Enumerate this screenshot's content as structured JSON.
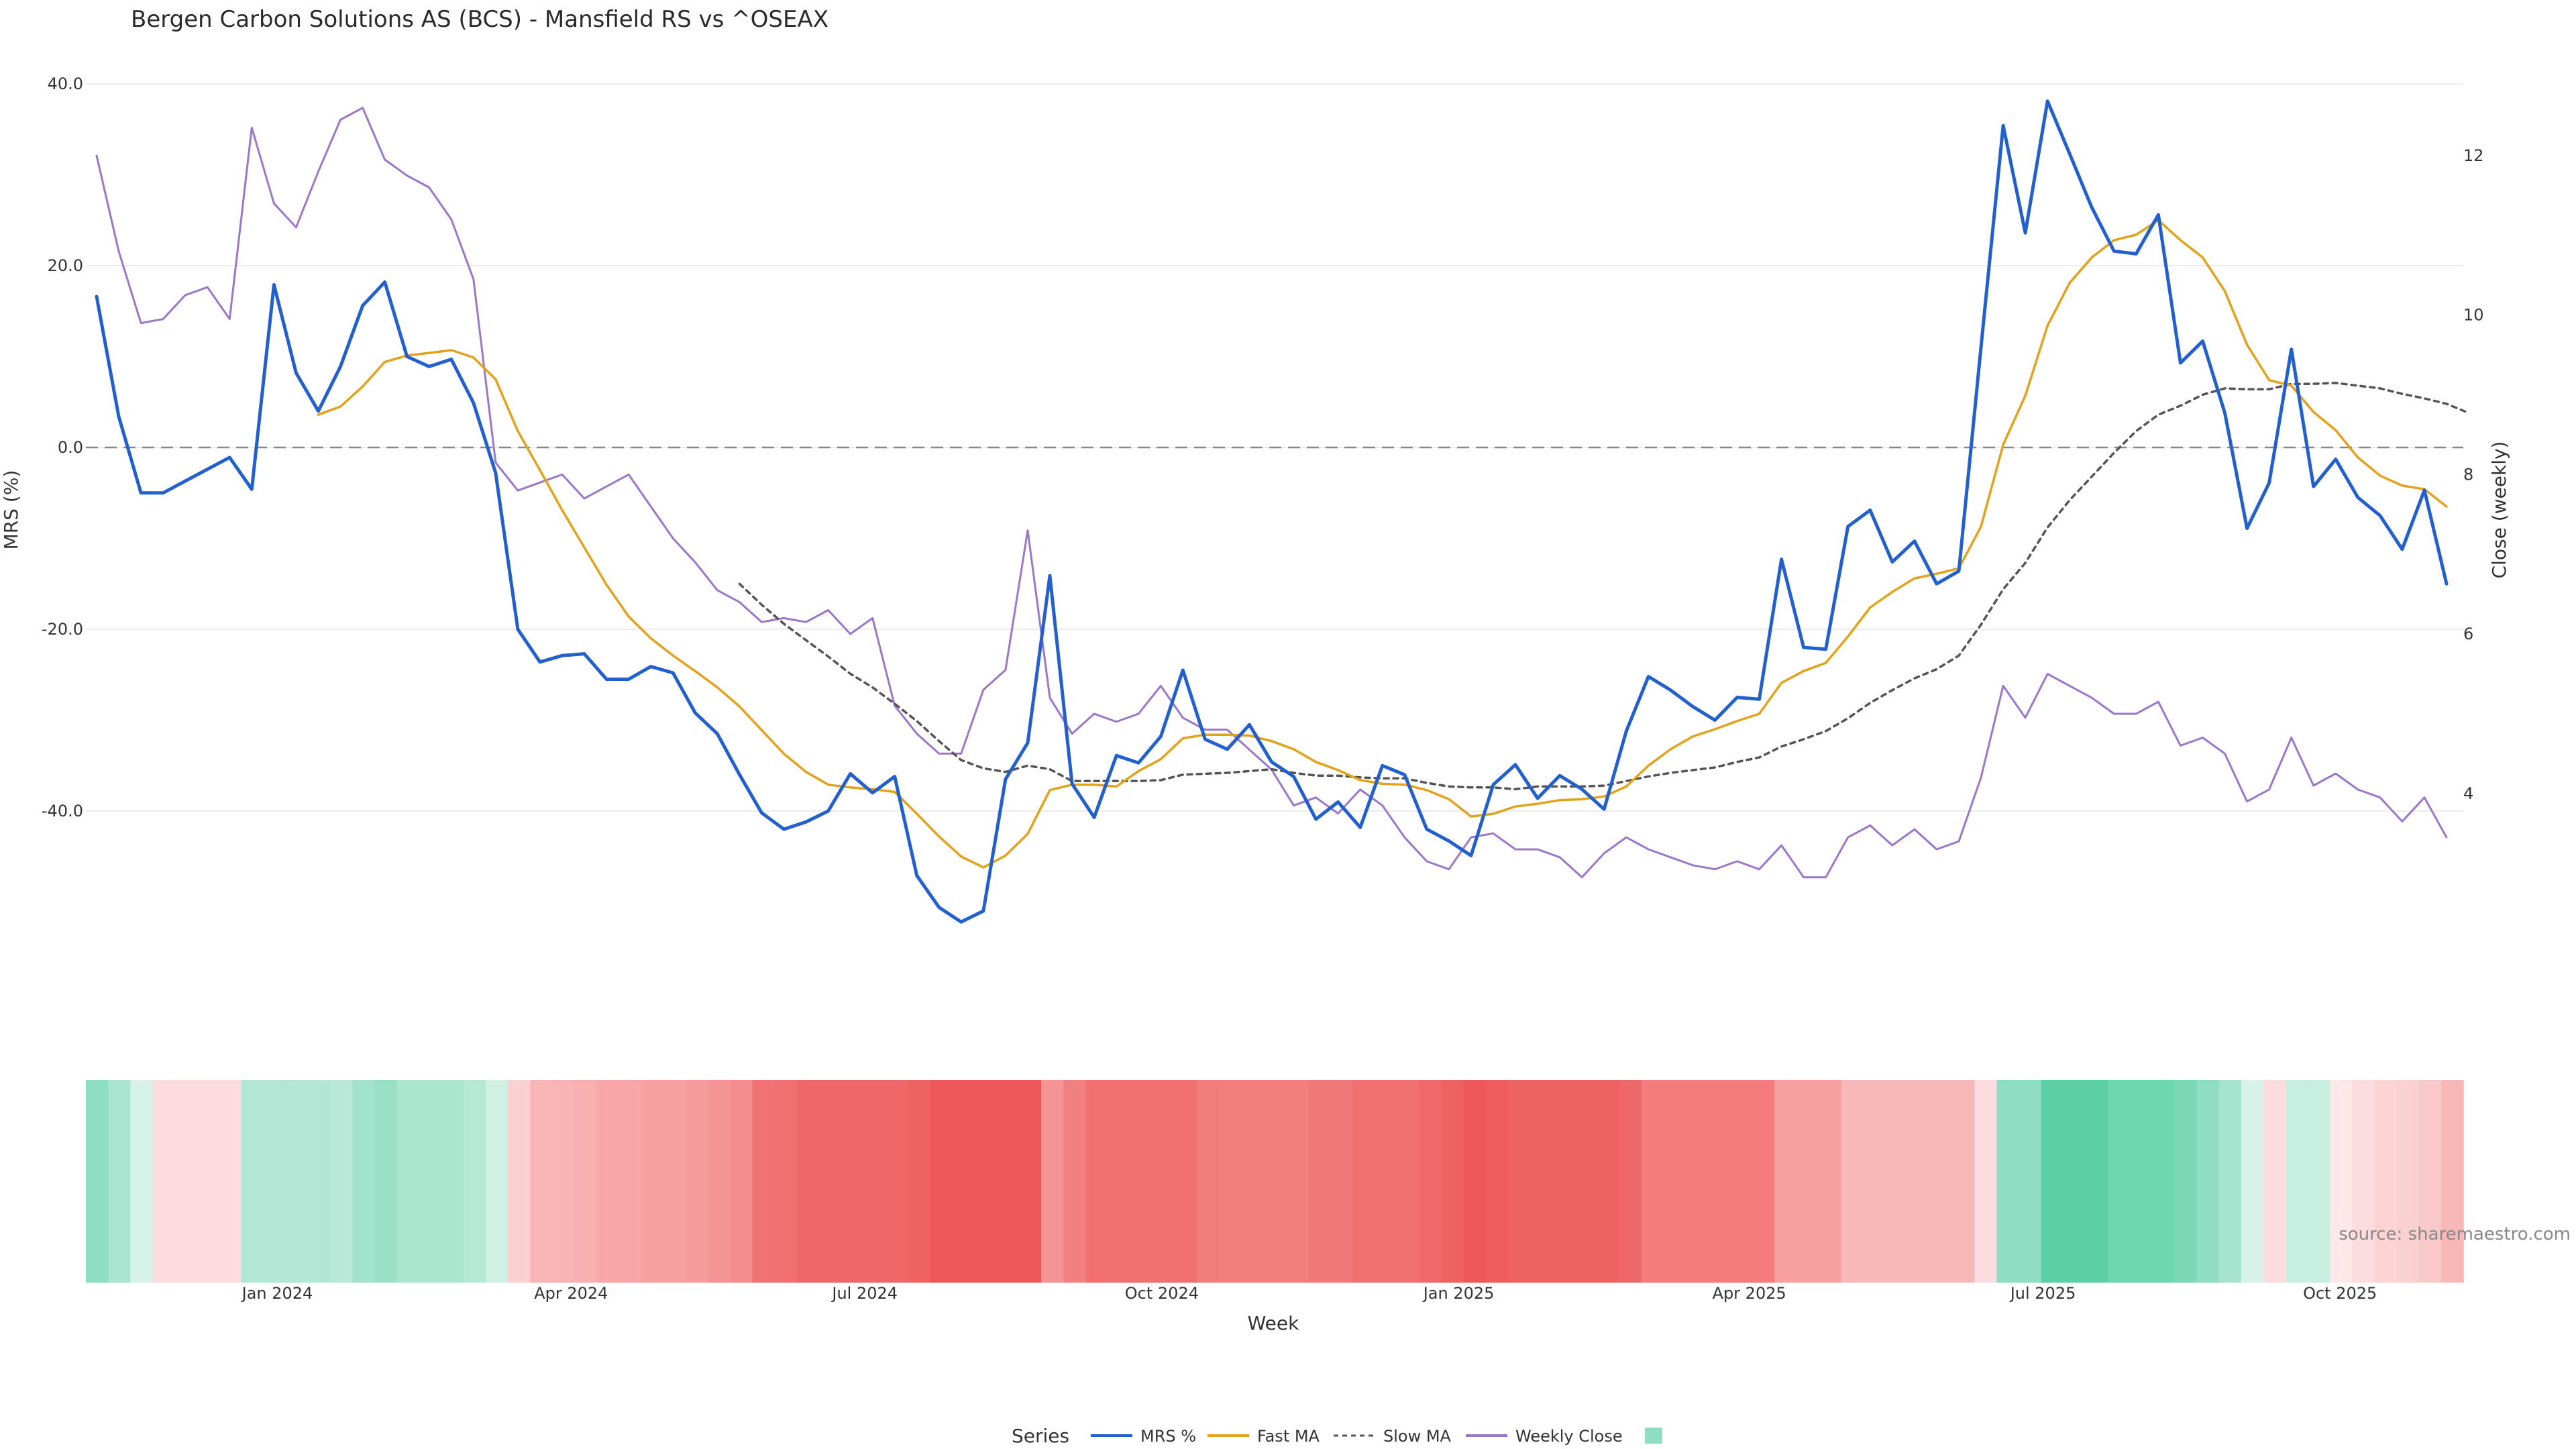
{
  "chart_data": {
    "type": "line",
    "title": "Bergen Carbon Solutions AS (BCS) - Mansfield RS vs ^OSEAX",
    "xlabel": "Week",
    "ylabel_left": "MRS (%)",
    "ylabel_right": "Close (weekly)",
    "x_start": "2023-11-06",
    "x_end": "2025-11-03",
    "y_left_range": [
      -60,
      40
    ],
    "y_left_ticks": [
      "40.0",
      "20.0",
      "0.0",
      "-20.0",
      "-40.0"
    ],
    "y_right_range": [
      1.5,
      12.9
    ],
    "y_right_ticks": [
      "12",
      "10",
      "8",
      "6",
      "4"
    ],
    "x_tick_labels": [
      "Jan 2024",
      "Apr 2024",
      "Jul 2024",
      "Oct 2024",
      "Jan 2025",
      "Apr 2025",
      "Jul 2025",
      "Oct 2025"
    ],
    "x_tick_dates": [
      "2024-01-01",
      "2024-04-01",
      "2024-07-01",
      "2024-10-01",
      "2025-01-01",
      "2025-04-01",
      "2025-07-01",
      "2025-10-01"
    ],
    "zero_line": 0,
    "series": [
      {
        "name": "MRS %",
        "color": "#2260d0",
        "axis": "left",
        "values": [
          16.6,
          3.4,
          -5.0,
          -5.0,
          -3.7,
          -2.4,
          -1.1,
          -4.6,
          17.9,
          8.2,
          4.0,
          8.9,
          15.6,
          18.2,
          10.0,
          8.9,
          9.7,
          4.9,
          -2.8,
          -20.0,
          -23.6,
          -22.9,
          -22.7,
          -25.5,
          -25.5,
          -24.1,
          -24.8,
          -29.2,
          -31.5,
          -36.0,
          -40.2,
          -42.0,
          -41.2,
          -40.0,
          -35.9,
          -38.0,
          -36.2,
          -47.1,
          -50.6,
          -52.2,
          -51.0,
          -36.5,
          -32.5,
          -14.1,
          -37.0,
          -40.7,
          -33.9,
          -34.7,
          -31.8,
          -24.5,
          -32.1,
          -33.2,
          -30.5,
          -34.6,
          -36.2,
          -40.9,
          -39.0,
          -41.8,
          -35.0,
          -36.0,
          -42.0,
          -43.3,
          -44.9,
          -37.1,
          -34.9,
          -38.6,
          -36.1,
          -37.6,
          -39.8,
          -31.2,
          -25.2,
          -26.7,
          -28.5,
          -30.0,
          -27.5,
          -27.7,
          -12.3,
          -22.0,
          -22.2,
          -8.7,
          -6.9,
          -12.6,
          -10.3,
          -15.0,
          -13.6,
          11.0,
          35.4,
          23.6,
          38.1,
          32.3,
          26.4,
          21.6,
          21.3,
          25.6,
          9.3,
          11.7,
          3.8,
          -8.9,
          -3.9,
          10.8,
          -4.3,
          -1.3,
          -5.5,
          -7.5,
          -11.2,
          -4.7,
          -15.0
        ]
      },
      {
        "name": "Fast MA",
        "color": "#e3a21a",
        "axis": "left",
        "values": [
          null,
          null,
          null,
          null,
          null,
          null,
          null,
          null,
          null,
          null,
          3.6,
          4.5,
          6.7,
          9.4,
          10.1,
          10.4,
          10.7,
          9.9,
          7.5,
          1.8,
          -2.5,
          -6.9,
          -11.0,
          -15.1,
          -18.6,
          -21.0,
          -22.9,
          -24.6,
          -26.4,
          -28.5,
          -31.1,
          -33.7,
          -35.7,
          -37.1,
          -37.4,
          -37.6,
          -37.9,
          -40.3,
          -42.8,
          -45.0,
          -46.2,
          -44.9,
          -42.5,
          -37.7,
          -37.1,
          -37.1,
          -37.3,
          -35.6,
          -34.3,
          -32.0,
          -31.6,
          -31.6,
          -31.7,
          -32.3,
          -33.2,
          -34.6,
          -35.5,
          -36.6,
          -37.0,
          -37.1,
          -37.7,
          -38.7,
          -40.6,
          -40.3,
          -39.5,
          -39.2,
          -38.8,
          -38.7,
          -38.4,
          -37.3,
          -35.0,
          -33.2,
          -31.8,
          -31.0,
          -30.1,
          -29.3,
          -25.9,
          -24.6,
          -23.7,
          -20.8,
          -17.6,
          -15.9,
          -14.4,
          -13.9,
          -13.3,
          -8.7,
          0.3,
          5.7,
          13.4,
          18.1,
          20.9,
          22.8,
          23.4,
          25.0,
          22.8,
          20.9,
          17.2,
          11.3,
          7.4,
          6.8,
          3.9,
          1.9,
          -1.1,
          -3.1,
          -4.2,
          -4.6,
          -6.5
        ]
      },
      {
        "name": "Slow MA",
        "color": "#555555",
        "axis": "left",
        "dashed": true,
        "values": [
          null,
          null,
          null,
          null,
          null,
          null,
          null,
          null,
          null,
          null,
          null,
          null,
          null,
          null,
          null,
          null,
          null,
          null,
          null,
          null,
          null,
          null,
          null,
          null,
          null,
          null,
          null,
          null,
          null,
          -15.0,
          -17.3,
          -19.4,
          -21.2,
          -23.0,
          -24.9,
          -26.4,
          -28.2,
          -30.1,
          -32.3,
          -34.4,
          -35.3,
          -35.7,
          -35.0,
          -35.4,
          -36.7,
          -36.7,
          -36.7,
          -36.7,
          -36.6,
          -36.0,
          -35.9,
          -35.8,
          -35.6,
          -35.4,
          -35.8,
          -36.1,
          -36.1,
          -36.3,
          -36.4,
          -36.4,
          -36.9,
          -37.3,
          -37.4,
          -37.4,
          -37.6,
          -37.3,
          -37.3,
          -37.3,
          -37.2,
          -36.7,
          -36.2,
          -35.8,
          -35.5,
          -35.2,
          -34.6,
          -34.1,
          -32.9,
          -32.1,
          -31.2,
          -29.8,
          -28.1,
          -26.7,
          -25.4,
          -24.4,
          -22.9,
          -19.5,
          -15.6,
          -12.7,
          -8.8,
          -5.8,
          -3.2,
          -0.6,
          1.8,
          3.6,
          4.6,
          5.8,
          6.5,
          6.4,
          6.4,
          7.0,
          7.0,
          7.1,
          6.8,
          6.5,
          5.9,
          5.4,
          4.8,
          3.8
        ]
      },
      {
        "name": "Weekly Close",
        "color": "#9b77cc",
        "axis": "right",
        "values": [
          12.0,
          10.8,
          9.9,
          9.95,
          10.25,
          10.35,
          9.95,
          12.35,
          11.4,
          11.1,
          11.8,
          12.45,
          12.6,
          11.95,
          11.75,
          11.6,
          11.2,
          10.45,
          8.15,
          7.8,
          7.9,
          8.0,
          7.7,
          7.85,
          8.0,
          7.6,
          7.2,
          6.9,
          6.55,
          6.4,
          6.15,
          6.2,
          6.15,
          6.3,
          6.0,
          6.2,
          5.1,
          4.75,
          4.5,
          4.5,
          5.3,
          5.55,
          7.3,
          5.2,
          4.75,
          5.0,
          4.9,
          5.0,
          5.35,
          4.95,
          4.8,
          4.8,
          4.55,
          4.3,
          3.85,
          3.95,
          3.75,
          4.05,
          3.85,
          3.45,
          3.15,
          3.05,
          3.45,
          3.5,
          3.3,
          3.3,
          3.2,
          2.95,
          3.25,
          3.45,
          3.3,
          3.2,
          3.1,
          3.05,
          3.15,
          3.05,
          3.35,
          2.95,
          2.95,
          3.45,
          3.6,
          3.35,
          3.55,
          3.3,
          3.4,
          4.2,
          5.35,
          4.95,
          5.5,
          5.35,
          5.2,
          5.0,
          5.0,
          5.15,
          4.6,
          4.7,
          4.5,
          3.9,
          4.05,
          4.7,
          4.1,
          4.25,
          4.05,
          3.95,
          3.65,
          3.95,
          3.45
        ]
      }
    ],
    "heat_strip_colors": [
      "#8fddc2",
      "#a8e4cf",
      "#d7f2e8",
      "#fcdcdc",
      "#fcdcdc",
      "#fcdcdc",
      "#fcdcdc",
      "#b1e7d4",
      "#b1e7d4",
      "#b1e7d4",
      "#b1e7d4",
      "#b8e9d8",
      "#a1e3cc",
      "#99e0c7",
      "#aae5d0",
      "#aae5d0",
      "#aae5d0",
      "#b6e8d6",
      "#d0f0e4",
      "#fad0d0",
      "#f8b6b6",
      "#f8b4b4",
      "#f8b0b0",
      "#f7a7a7",
      "#f7a7a7",
      "#f6a0a0",
      "#f6a0a0",
      "#f69c9c",
      "#f49494",
      "#f48e8e",
      "#f17272",
      "#f07070",
      "#ef6868",
      "#ef6868",
      "#ef6868",
      "#ef6868",
      "#ef6868",
      "#ee6262",
      "#ef5858",
      "#ef5858",
      "#ef5858",
      "#ef5858",
      "#ef5858",
      "#f49494",
      "#f18080",
      "#f07070",
      "#f07070",
      "#f07070",
      "#f07070",
      "#f07070",
      "#f17c7c",
      "#f27e7e",
      "#f27e7e",
      "#f27e7e",
      "#f27e7e",
      "#f17878",
      "#f17878",
      "#f07070",
      "#f07070",
      "#f07070",
      "#f06868",
      "#ef6262",
      "#ef5858",
      "#ef5c5c",
      "#ef6262",
      "#ef6262",
      "#ef6262",
      "#ef6262",
      "#ef6262",
      "#ef6868",
      "#f47c7c",
      "#f47c7c",
      "#f47c7c",
      "#f47c7c",
      "#f47c7c",
      "#f47c7c",
      "#f6a0a0",
      "#f6a0a0",
      "#f6a0a0",
      "#f8b8b8",
      "#f8b8b8",
      "#f8b8b8",
      "#f8b8b8",
      "#f8b8b8",
      "#f8b8b8",
      "#fcdcdc",
      "#8fddc2",
      "#8fddc2",
      "#5ccfa6",
      "#5ccfa6",
      "#5ccfa6",
      "#6dd5b0",
      "#6dd5b0",
      "#6dd5b0",
      "#7ad8b7",
      "#8fddc2",
      "#a5e4cf",
      "#d7f2e8",
      "#fcdcdc",
      "#c7eee0",
      "#c7eee0",
      "#fce8e8",
      "#fcdcdc",
      "#fcd4d4",
      "#fbd0d0",
      "#f9c8c8",
      "#f8b8b8"
    ],
    "legend": {
      "title": "Series",
      "items": [
        {
          "label": "MRS %",
          "color": "#2260d0",
          "style": "solid"
        },
        {
          "label": "Fast MA",
          "color": "#e3a21a",
          "style": "solid"
        },
        {
          "label": "Slow MA",
          "color": "#555555",
          "style": "dashed"
        },
        {
          "label": "Weekly Close",
          "color": "#9b77cc",
          "style": "solid"
        },
        {
          "label": "",
          "color": "#8fddc2",
          "style": "swatch"
        }
      ]
    },
    "source": "source: sharemaestro.com",
    "grid": true,
    "legend_position": "bottom-center"
  }
}
